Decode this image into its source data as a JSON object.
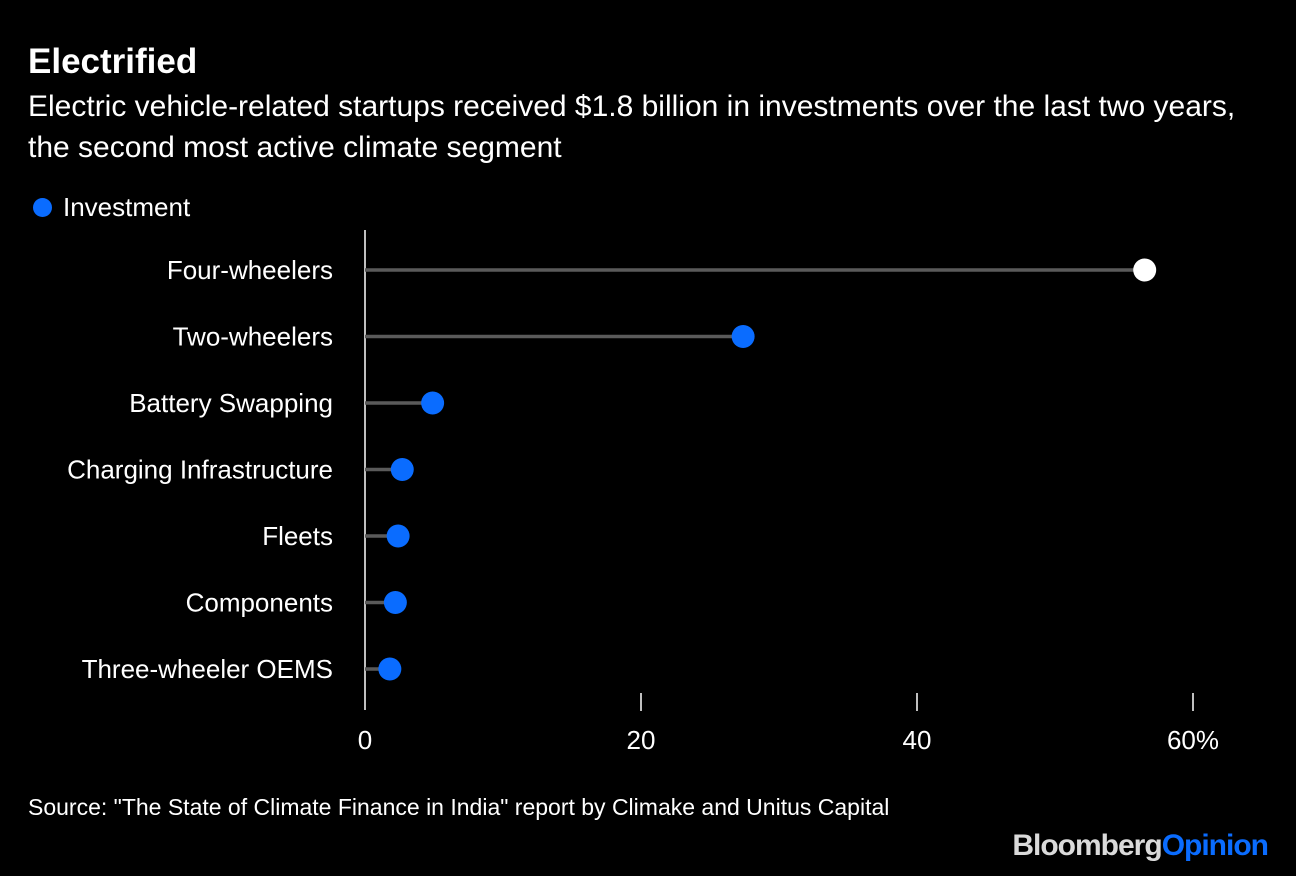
{
  "header": {
    "title": "Electrified",
    "subtitle": "Electric vehicle-related startups received $1.8 billion in investments over the last two years, the second most active climate segment"
  },
  "legend": {
    "label": "Investment",
    "color": "#0a6cff"
  },
  "chart_data": {
    "type": "lollipop",
    "title": "Electrified",
    "categories": [
      "Four-wheelers",
      "Two-wheelers",
      "Battery Swapping",
      "Charging Infrastructure",
      "Fleets",
      "Components",
      "Three-wheeler OEMS"
    ],
    "series": [
      {
        "name": "Investment",
        "values": [
          56.5,
          27.4,
          4.9,
          2.7,
          2.4,
          2.2,
          1.8
        ]
      }
    ],
    "highlight_index": 0,
    "highlight_color": "#ffffff",
    "point_color": "#0a6cff",
    "xlim": [
      0,
      60
    ],
    "x_ticks": [
      0,
      20,
      40,
      60
    ],
    "x_tick_labels": [
      "0",
      "20",
      "40",
      "60%"
    ],
    "xlabel": "",
    "ylabel": ""
  },
  "footer": {
    "source": "Source: \"The State of Climate Finance in India\" report by Climake and Unitus Capital",
    "brand_part1": "Bloomberg",
    "brand_part2": "Opinion"
  }
}
